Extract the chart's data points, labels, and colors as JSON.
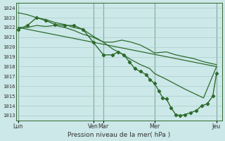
{
  "bg_color": "#cce8e8",
  "grid_color": "#aacccc",
  "line_color": "#2d6b2d",
  "ylim": [
    1012.5,
    1024.5
  ],
  "yticks": [
    1013,
    1014,
    1015,
    1016,
    1017,
    1018,
    1019,
    1020,
    1021,
    1022,
    1023,
    1024
  ],
  "xlabel": "Pression niveau de la mer( hPa )",
  "day_labels": [
    "Lun",
    "Ven",
    "Mar",
    "Mer",
    "Jeu"
  ],
  "day_x": [
    0.0,
    4.05,
    4.6,
    7.35,
    10.7
  ],
  "xlim": [
    -0.1,
    11.0
  ],
  "series": [
    {
      "x": [
        0.0,
        10.7
      ],
      "y": [
        1022.0,
        1018.0
      ],
      "has_markers": false,
      "lw": 0.9
    },
    {
      "x": [
        0.0,
        0.5,
        1.0,
        1.5,
        2.0,
        2.5,
        3.0,
        3.5,
        4.05,
        4.6,
        5.1,
        5.6,
        6.1,
        6.6,
        7.1,
        7.35,
        8.0,
        9.0,
        10.0,
        10.7
      ],
      "y": [
        1023.5,
        1023.3,
        1023.0,
        1022.8,
        1022.5,
        1022.3,
        1022.0,
        1021.8,
        1021.1,
        1020.5,
        1019.8,
        1019.3,
        1018.7,
        1018.2,
        1017.8,
        1017.3,
        1016.7,
        1015.7,
        1014.8,
        1018.0
      ],
      "has_markers": false,
      "lw": 0.9
    },
    {
      "x": [
        0.0,
        0.5,
        1.0,
        1.5,
        2.0,
        2.5,
        3.0,
        3.5,
        4.05,
        4.6,
        5.1,
        5.4,
        5.7,
        6.0,
        6.3,
        6.6,
        6.9,
        7.1,
        7.35,
        7.6,
        7.8,
        8.0,
        8.25,
        8.5,
        8.75,
        9.0,
        9.3,
        9.6,
        9.9,
        10.2,
        10.5,
        10.7
      ],
      "y": [
        1021.8,
        1022.2,
        1023.0,
        1022.7,
        1022.3,
        1022.2,
        1022.2,
        1021.8,
        1020.5,
        1019.2,
        1019.2,
        1019.5,
        1019.2,
        1018.5,
        1017.8,
        1017.5,
        1017.2,
        1016.7,
        1016.3,
        1015.5,
        1014.8,
        1014.7,
        1013.8,
        1013.1,
        1013.0,
        1013.1,
        1013.3,
        1013.5,
        1014.0,
        1014.2,
        1015.0,
        1017.3
      ],
      "has_markers": true,
      "lw": 1.0
    },
    {
      "x": [
        0.0,
        0.5,
        1.0,
        1.5,
        2.0,
        2.5,
        3.0,
        3.5,
        4.05,
        4.6,
        5.1,
        5.6,
        6.1,
        6.6,
        7.1,
        7.35,
        8.0,
        8.5,
        9.0,
        9.5,
        10.0,
        10.7
      ],
      "y": [
        1022.0,
        1022.0,
        1022.2,
        1022.1,
        1022.2,
        1022.0,
        1021.7,
        1021.3,
        1021.0,
        1020.5,
        1020.5,
        1020.7,
        1020.5,
        1020.2,
        1019.7,
        1019.4,
        1019.5,
        1019.2,
        1019.0,
        1018.8,
        1018.5,
        1018.2
      ],
      "has_markers": false,
      "lw": 0.9
    }
  ]
}
